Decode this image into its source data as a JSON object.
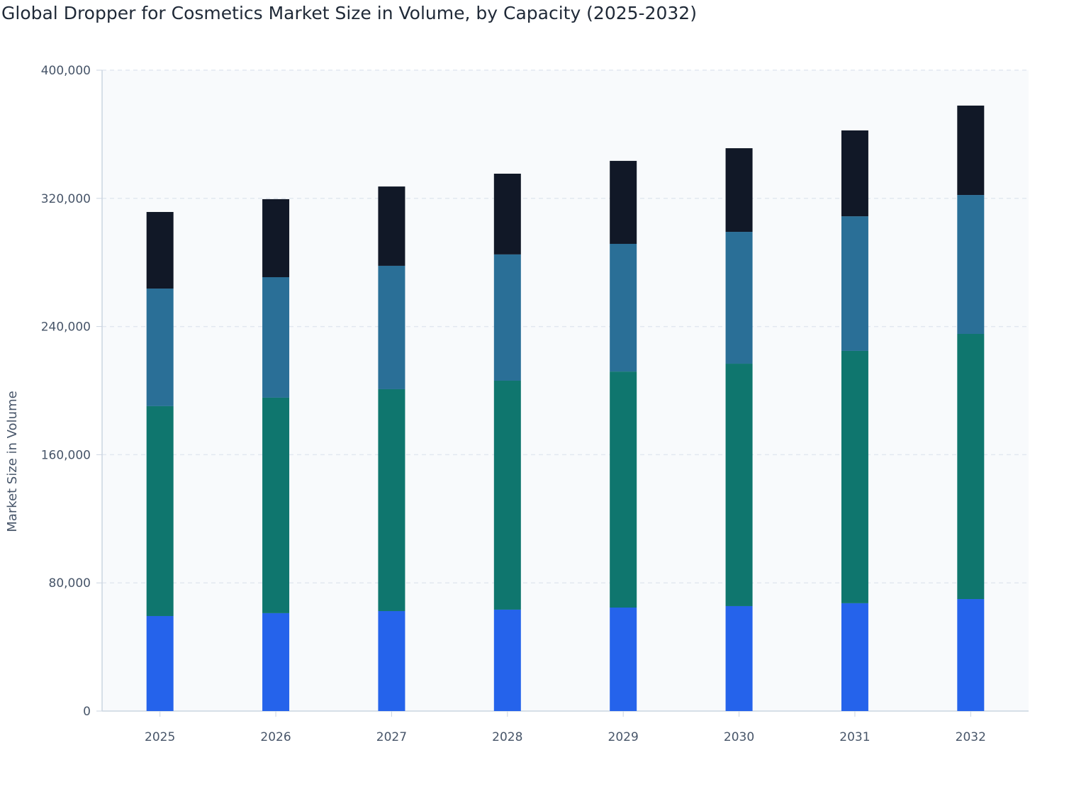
{
  "chart_data": {
    "type": "bar",
    "stacked": true,
    "title": "Global Dropper for Cosmetics Market Size in Volume, by Capacity (2025-2032)",
    "xlabel": "",
    "ylabel": "Market Size in Volume",
    "ylim": [
      0,
      400000
    ],
    "yticks": [
      0,
      80000,
      160000,
      240000,
      320000,
      400000
    ],
    "ytick_labels": [
      "0",
      "80,000",
      "160,000",
      "240,000",
      "320,000",
      "400,000"
    ],
    "grid": true,
    "legend": "none",
    "categories": [
      "2025",
      "2026",
      "2027",
      "2028",
      "2029",
      "2030",
      "2031",
      "2032"
    ],
    "series": [
      {
        "color": "#2563eb",
        "values": [
          59300,
          61100,
          62400,
          63300,
          64600,
          65500,
          67300,
          69900
        ]
      },
      {
        "color": "#0f766e",
        "values": [
          131000,
          134500,
          138500,
          142900,
          147300,
          151300,
          157500,
          165500
        ]
      },
      {
        "color": "#2a6f97",
        "values": [
          73400,
          75200,
          77000,
          78800,
          79700,
          82300,
          84000,
          86700
        ]
      },
      {
        "color": "#111827",
        "values": [
          47800,
          48700,
          49500,
          50400,
          51800,
          52200,
          53600,
          55800
        ]
      }
    ]
  }
}
